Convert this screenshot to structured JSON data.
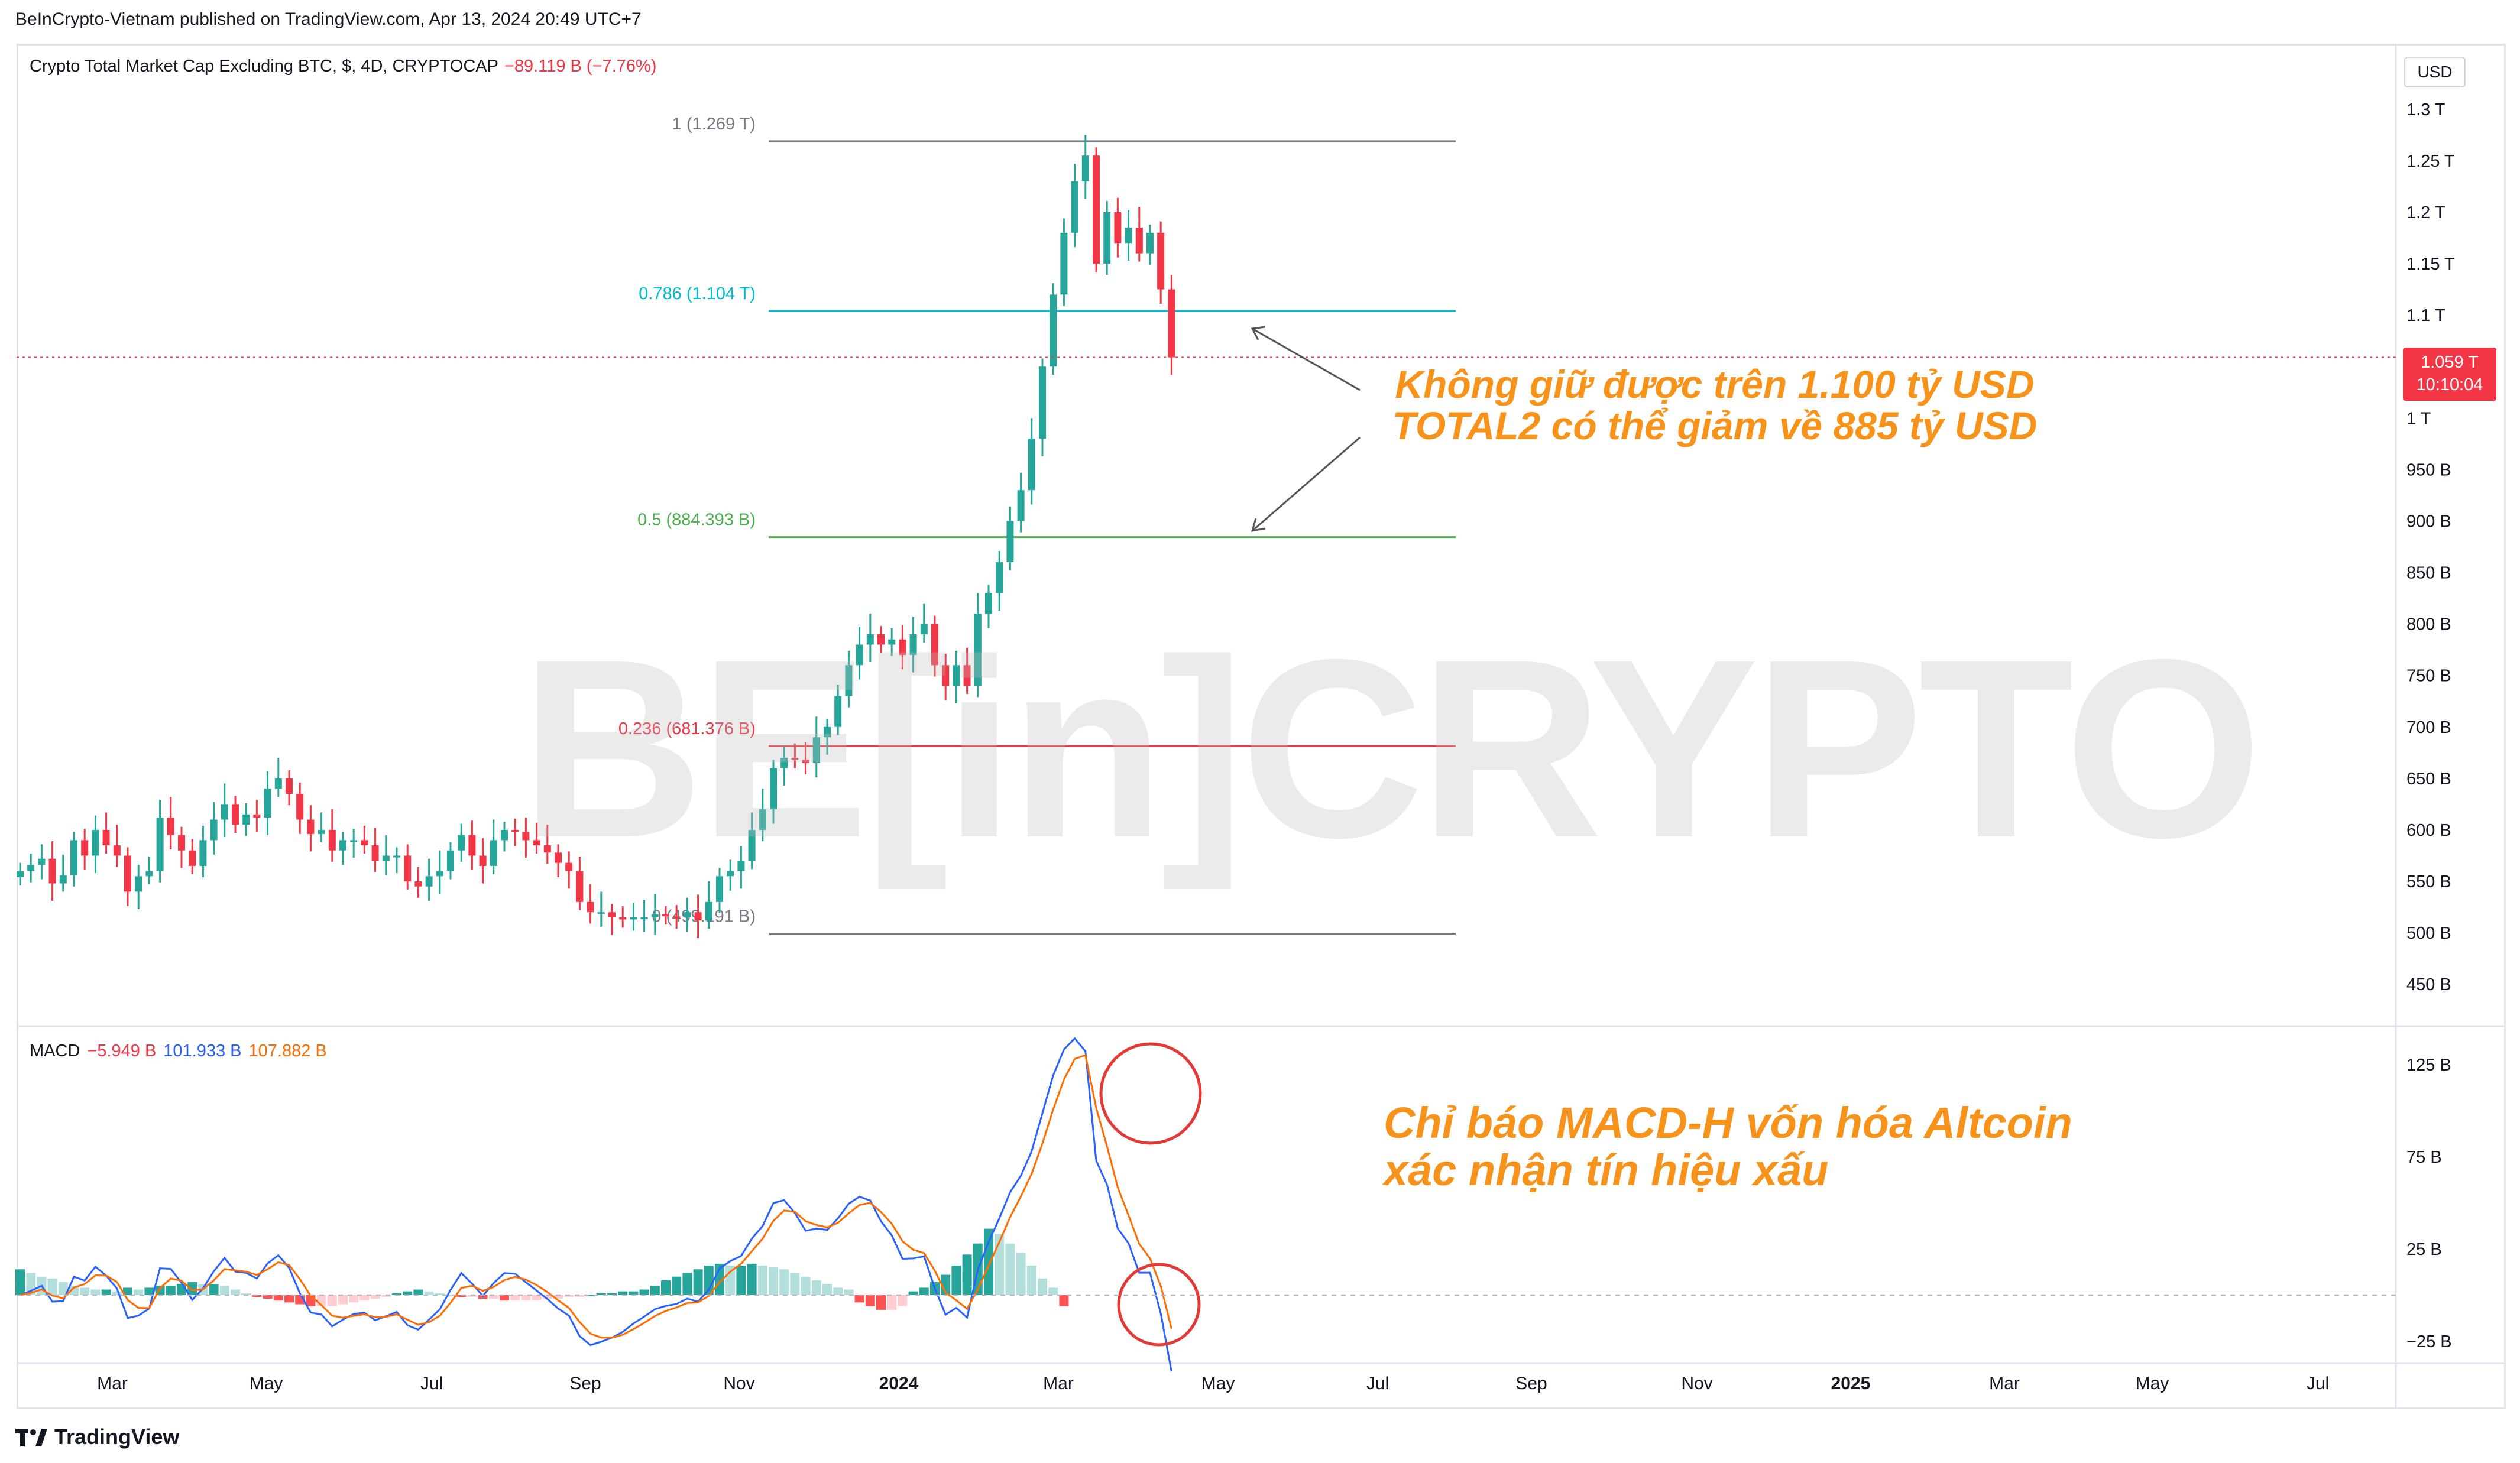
{
  "header": {
    "publish_text": "BeInCrypto-Vietnam published on TradingView.com, Apr 13, 2024 20:49 UTC+7"
  },
  "legend": {
    "symbol": "Crypto Total Market Cap Excluding BTC, $, 4D, CRYPTOCAP",
    "change": "−89.119 B (−7.76%)"
  },
  "currency": "USD",
  "price_badge": {
    "price": "1.059 T",
    "countdown": "10:10:04"
  },
  "macd_legend": {
    "label": "MACD",
    "hist": "−5.949 B",
    "macd": "101.933 B",
    "signal": "107.882 B"
  },
  "annotations": {
    "line1": "Không giữ được trên 1.100 tỷ USD",
    "line2": "TOTAL2 có thể giảm về 885 tỷ USD",
    "macd_line1": "Chỉ báo MACD-H vốn hóa Altcoin",
    "macd_line2": "xác nhận tín hiệu xấu"
  },
  "watermark": "BE[in]CRYPTO",
  "footer": {
    "brand": "TradingView"
  },
  "colors": {
    "up": "#26a69a",
    "down": "#f23645",
    "macd": "#2962ff",
    "signal": "#ff6d00",
    "accent": "#f7931a"
  },
  "chart_data": [
    {
      "type": "candlestick",
      "price_axis": {
        "ylim": [
          430,
          1320
        ],
        "ticks": [
          "1.3 T",
          "1.25 T",
          "1.2 T",
          "1.15 T",
          "1.1 T",
          "1 T",
          "950 B",
          "900 B",
          "850 B",
          "800 B",
          "750 B",
          "700 B",
          "650 B",
          "600 B",
          "550 B",
          "500 B",
          "450 B"
        ],
        "tick_values": [
          1300,
          1250,
          1200,
          1150,
          1100,
          1000,
          950,
          900,
          850,
          800,
          750,
          700,
          650,
          600,
          550,
          500,
          450
        ]
      },
      "time_axis": [
        "Mar",
        "May",
        "Jul",
        "Sep",
        "Nov",
        "2024",
        "Mar",
        "May",
        "Jul",
        "Sep",
        "Nov",
        "2025",
        "Mar",
        "May",
        "Jul"
      ],
      "fib_levels": [
        {
          "label": "1 (1.269 T)",
          "value": 1269,
          "color": "#787b86"
        },
        {
          "label": "0.786 (1.104 T)",
          "value": 1104,
          "color": "#00bcd4"
        },
        {
          "label": "0.5 (884.393 B)",
          "value": 884.393,
          "color": "#4caf50"
        },
        {
          "label": "0.236 (681.376 B)",
          "value": 681.376,
          "color": "#f23645"
        },
        {
          "label": "0 (499.191 B)",
          "value": 499.191,
          "color": "#787b86"
        }
      ],
      "close": [
        560,
        566,
        572,
        548,
        556,
        590,
        575,
        600,
        585,
        575,
        540,
        555,
        560,
        612,
        595,
        580,
        565,
        590,
        610,
        625,
        605,
        615,
        612,
        640,
        650,
        635,
        610,
        596,
        600,
        580,
        590,
        590,
        585,
        570,
        575,
        575,
        550,
        545,
        555,
        560,
        580,
        595,
        575,
        565,
        590,
        600,
        598,
        590,
        585,
        578,
        568,
        560,
        530,
        520,
        520,
        515,
        513,
        515,
        515,
        518,
        516,
        515,
        520,
        512,
        530,
        555,
        560,
        570,
        600,
        620,
        660,
        670,
        668,
        665,
        690,
        700,
        730,
        760,
        780,
        790,
        780,
        785,
        770,
        790,
        800,
        760,
        740,
        760,
        740,
        810,
        830,
        860,
        900,
        930,
        980,
        1050,
        1120,
        1180,
        1230,
        1255,
        1150,
        1200,
        1170,
        1185,
        1160,
        1180,
        1125
      ],
      "close_note": "approximate 4-day closes, billions USD",
      "last_close": 1059
    },
    {
      "type": "bar",
      "name_label": "MACD",
      "ylim": [
        -35,
        135
      ],
      "ticks": [
        "125 B",
        "75 B",
        "25 B",
        "−25 B"
      ],
      "tick_values": [
        125,
        75,
        25,
        -25
      ],
      "histogram": [
        14,
        12,
        10,
        9,
        7,
        5,
        4,
        3,
        3,
        2,
        4,
        3,
        4,
        5,
        5,
        6,
        7,
        6,
        6,
        5,
        3,
        1,
        -1,
        -2,
        -3,
        -4,
        -5,
        -6,
        -6,
        -6,
        -5,
        -4,
        -3,
        -2,
        -1,
        1,
        2,
        3,
        2,
        1,
        0,
        -1,
        -1,
        -2,
        -2,
        -3,
        -3,
        -3,
        -3,
        -2,
        -2,
        -1,
        -1,
        0,
        1,
        1,
        2,
        2,
        3,
        5,
        8,
        10,
        12,
        14,
        16,
        17,
        16,
        16,
        17,
        16,
        15,
        14,
        12,
        10,
        8,
        6,
        4,
        3,
        -4,
        -6,
        -8,
        -8,
        -6,
        2,
        4,
        7,
        11,
        16,
        22,
        28,
        36,
        33,
        28,
        23,
        16,
        9,
        4,
        -6
      ]
    }
  ]
}
